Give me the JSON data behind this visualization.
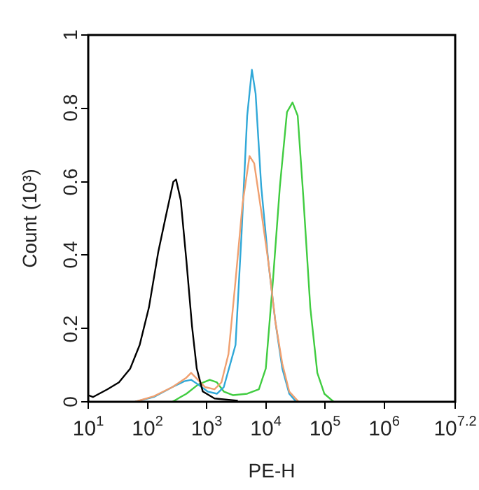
{
  "chart_data": {
    "type": "line",
    "xlabel": "PE-H",
    "ylabel": "Count (10³)",
    "log": "x",
    "xlim": [
      10,
      15848932
    ],
    "xticks": [
      {
        "value": 10,
        "label": "10$^{1}$"
      },
      {
        "value": 100,
        "label": "10$^{2}$"
      },
      {
        "value": 1000,
        "label": "10$^{3}$"
      },
      {
        "value": 10000,
        "label": "10$^{4}$"
      },
      {
        "value": 100000,
        "label": "10$^{5}$"
      },
      {
        "value": 1000000,
        "label": "10$^{6}$"
      },
      {
        "value": 15848932,
        "label": "10$^{7.2}$"
      }
    ],
    "ylim": [
      0,
      1
    ],
    "yticks": [
      0,
      0.2,
      0.4,
      0.6,
      0.8,
      1
    ],
    "series": [
      {
        "color": "#000000",
        "x": [
          10,
          12,
          21,
          33,
          51,
          74,
          106,
          153,
          201,
          274,
          305,
          366,
          456,
          567,
          681,
          862,
          1360,
          3370
        ],
        "values": [
          0.018,
          0.013,
          0.034,
          0.053,
          0.09,
          0.155,
          0.257,
          0.41,
          0.5,
          0.6,
          0.606,
          0.549,
          0.384,
          0.206,
          0.091,
          0.028,
          0.009,
          0.003
        ]
      },
      {
        "color": "#f0a070",
        "x": [
          62,
          128,
          264,
          456,
          547,
          656,
          944,
          1360,
          1780,
          2340,
          3080,
          4050,
          5310,
          6370,
          8370,
          11000,
          14500,
          19000,
          24900,
          35900
        ],
        "values": [
          0,
          0.015,
          0.04,
          0.066,
          0.079,
          0.066,
          0.04,
          0.034,
          0.053,
          0.13,
          0.33,
          0.54,
          0.67,
          0.65,
          0.52,
          0.384,
          0.219,
          0.104,
          0.028,
          0
        ]
      },
      {
        "color": "#30a8d8",
        "x": [
          62,
          128,
          264,
          420,
          547,
          720,
          1040,
          1500,
          1950,
          3080,
          3900,
          4850,
          5820,
          6730,
          8370,
          11000,
          14500,
          19000,
          24900,
          32700
        ],
        "values": [
          0,
          0.013,
          0.04,
          0.056,
          0.06,
          0.047,
          0.028,
          0.022,
          0.04,
          0.155,
          0.46,
          0.78,
          0.905,
          0.84,
          0.587,
          0.384,
          0.219,
          0.091,
          0.022,
          0
        ]
      },
      {
        "color": "#40cc40",
        "x": [
          264,
          456,
          718,
          1130,
          1490,
          1950,
          2810,
          4850,
          7640,
          10000,
          13200,
          17300,
          22800,
          28300,
          34600,
          43000,
          56500,
          74200,
          97500,
          140000
        ],
        "values": [
          0,
          0.022,
          0.047,
          0.06,
          0.053,
          0.028,
          0.018,
          0.022,
          0.034,
          0.091,
          0.33,
          0.587,
          0.79,
          0.816,
          0.78,
          0.56,
          0.257,
          0.079,
          0.022,
          0
        ]
      }
    ]
  }
}
